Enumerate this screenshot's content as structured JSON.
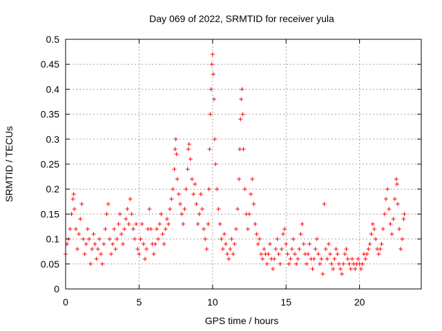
{
  "chart_data": {
    "type": "scatter",
    "title": "Day 069 of 2022, SRMTID for receiver yula",
    "xlabel": "GPS time / hours",
    "ylabel": "SRMTID / TECUs",
    "xlim": [
      0,
      24.2
    ],
    "ylim": [
      0,
      0.5
    ],
    "x_ticks": [
      0,
      5,
      10,
      15,
      20
    ],
    "x_tick_labels": [
      "0",
      "5",
      "10",
      "15",
      "20"
    ],
    "y_ticks": [
      0,
      0.05,
      0.1,
      0.15,
      0.2,
      0.25,
      0.3,
      0.35,
      0.4,
      0.45,
      0.5
    ],
    "y_tick_labels": [
      "0",
      "0.05",
      "0.1",
      "0.15",
      "0.2",
      "0.25",
      "0.3",
      "0.35",
      "0.4",
      "0.45",
      "0.5"
    ],
    "grid": true,
    "marker": "+",
    "color": "#ff0000",
    "series": [
      {
        "name": "SRMTID",
        "points": [
          [
            0.0,
            0.07
          ],
          [
            0.1,
            0.09
          ],
          [
            0.2,
            0.1
          ],
          [
            0.3,
            0.12
          ],
          [
            0.4,
            0.15
          ],
          [
            0.5,
            0.18
          ],
          [
            0.55,
            0.19
          ],
          [
            0.6,
            0.16
          ],
          [
            0.7,
            0.12
          ],
          [
            0.8,
            0.08
          ],
          [
            0.9,
            0.11
          ],
          [
            1.0,
            0.14
          ],
          [
            1.1,
            0.17
          ],
          [
            1.2,
            0.1
          ],
          [
            1.3,
            0.07
          ],
          [
            1.4,
            0.09
          ],
          [
            1.5,
            0.12
          ],
          [
            1.6,
            0.1
          ],
          [
            1.7,
            0.05
          ],
          [
            1.8,
            0.08
          ],
          [
            1.9,
            0.11
          ],
          [
            2.0,
            0.09
          ],
          [
            2.1,
            0.06
          ],
          [
            2.2,
            0.08
          ],
          [
            2.3,
            0.1
          ],
          [
            2.4,
            0.07
          ],
          [
            2.5,
            0.05
          ],
          [
            2.6,
            0.09
          ],
          [
            2.7,
            0.12
          ],
          [
            2.8,
            0.15
          ],
          [
            2.9,
            0.17
          ],
          [
            3.0,
            0.1
          ],
          [
            3.1,
            0.07
          ],
          [
            3.2,
            0.09
          ],
          [
            3.3,
            0.12
          ],
          [
            3.4,
            0.08
          ],
          [
            3.5,
            0.1
          ],
          [
            3.6,
            0.13
          ],
          [
            3.7,
            0.15
          ],
          [
            3.8,
            0.11
          ],
          [
            3.9,
            0.09
          ],
          [
            4.0,
            0.12
          ],
          [
            4.1,
            0.14
          ],
          [
            4.2,
            0.16
          ],
          [
            4.3,
            0.13
          ],
          [
            4.4,
            0.18
          ],
          [
            4.5,
            0.15
          ],
          [
            4.6,
            0.12
          ],
          [
            4.7,
            0.1
          ],
          [
            4.8,
            0.13
          ],
          [
            4.9,
            0.08
          ],
          [
            5.0,
            0.07
          ],
          [
            5.1,
            0.1
          ],
          [
            5.2,
            0.13
          ],
          [
            5.3,
            0.09
          ],
          [
            5.4,
            0.06
          ],
          [
            5.5,
            0.08
          ],
          [
            5.6,
            0.12
          ],
          [
            5.7,
            0.16
          ],
          [
            5.8,
            0.12
          ],
          [
            5.9,
            0.09
          ],
          [
            6.0,
            0.07
          ],
          [
            6.1,
            0.09
          ],
          [
            6.2,
            0.12
          ],
          [
            6.3,
            0.1
          ],
          [
            6.4,
            0.13
          ],
          [
            6.5,
            0.15
          ],
          [
            6.6,
            0.11
          ],
          [
            6.7,
            0.09
          ],
          [
            6.8,
            0.12
          ],
          [
            6.9,
            0.14
          ],
          [
            7.0,
            0.13
          ],
          [
            7.1,
            0.16
          ],
          [
            7.2,
            0.18
          ],
          [
            7.3,
            0.2
          ],
          [
            7.4,
            0.24
          ],
          [
            7.45,
            0.28
          ],
          [
            7.5,
            0.3
          ],
          [
            7.55,
            0.27
          ],
          [
            7.6,
            0.22
          ],
          [
            7.7,
            0.19
          ],
          [
            7.8,
            0.17
          ],
          [
            7.9,
            0.15
          ],
          [
            8.0,
            0.13
          ],
          [
            8.1,
            0.16
          ],
          [
            8.2,
            0.2
          ],
          [
            8.3,
            0.24
          ],
          [
            8.35,
            0.28
          ],
          [
            8.4,
            0.29
          ],
          [
            8.5,
            0.26
          ],
          [
            8.6,
            0.22
          ],
          [
            8.7,
            0.19
          ],
          [
            8.8,
            0.21
          ],
          [
            8.9,
            0.17
          ],
          [
            9.0,
            0.13
          ],
          [
            9.1,
            0.15
          ],
          [
            9.2,
            0.19
          ],
          [
            9.3,
            0.16
          ],
          [
            9.4,
            0.12
          ],
          [
            9.5,
            0.1
          ],
          [
            9.6,
            0.08
          ],
          [
            9.7,
            0.13
          ],
          [
            9.75,
            0.2
          ],
          [
            9.8,
            0.28
          ],
          [
            9.85,
            0.35
          ],
          [
            9.9,
            0.4
          ],
          [
            9.95,
            0.45
          ],
          [
            10.0,
            0.47
          ],
          [
            10.05,
            0.43
          ],
          [
            10.1,
            0.38
          ],
          [
            10.15,
            0.3
          ],
          [
            10.2,
            0.25
          ],
          [
            10.3,
            0.2
          ],
          [
            10.4,
            0.16
          ],
          [
            10.5,
            0.13
          ],
          [
            10.6,
            0.1
          ],
          [
            10.7,
            0.08
          ],
          [
            10.8,
            0.11
          ],
          [
            10.9,
            0.09
          ],
          [
            11.0,
            0.07
          ],
          [
            11.1,
            0.06
          ],
          [
            11.2,
            0.08
          ],
          [
            11.3,
            0.1
          ],
          [
            11.4,
            0.07
          ],
          [
            11.5,
            0.09
          ],
          [
            11.6,
            0.12
          ],
          [
            11.7,
            0.16
          ],
          [
            11.8,
            0.22
          ],
          [
            11.85,
            0.28
          ],
          [
            11.9,
            0.34
          ],
          [
            11.95,
            0.38
          ],
          [
            12.0,
            0.4
          ],
          [
            12.05,
            0.35
          ],
          [
            12.1,
            0.28
          ],
          [
            12.2,
            0.2
          ],
          [
            12.3,
            0.15
          ],
          [
            12.4,
            0.12
          ],
          [
            12.5,
            0.15
          ],
          [
            12.6,
            0.19
          ],
          [
            12.7,
            0.22
          ],
          [
            12.8,
            0.17
          ],
          [
            12.9,
            0.13
          ],
          [
            13.0,
            0.11
          ],
          [
            13.1,
            0.09
          ],
          [
            13.2,
            0.1
          ],
          [
            13.3,
            0.07
          ],
          [
            13.4,
            0.06
          ],
          [
            13.5,
            0.08
          ],
          [
            13.6,
            0.07
          ],
          [
            13.7,
            0.05
          ],
          [
            13.8,
            0.07
          ],
          [
            13.9,
            0.09
          ],
          [
            14.0,
            0.06
          ],
          [
            14.1,
            0.04
          ],
          [
            14.2,
            0.06
          ],
          [
            14.3,
            0.08
          ],
          [
            14.4,
            0.1
          ],
          [
            14.5,
            0.07
          ],
          [
            14.6,
            0.05
          ],
          [
            14.7,
            0.08
          ],
          [
            14.8,
            0.11
          ],
          [
            14.9,
            0.12
          ],
          [
            15.0,
            0.09
          ],
          [
            15.1,
            0.07
          ],
          [
            15.2,
            0.05
          ],
          [
            15.3,
            0.06
          ],
          [
            15.4,
            0.08
          ],
          [
            15.5,
            0.1
          ],
          [
            15.6,
            0.07
          ],
          [
            15.7,
            0.05
          ],
          [
            15.8,
            0.06
          ],
          [
            15.9,
            0.08
          ],
          [
            16.0,
            0.11
          ],
          [
            16.1,
            0.13
          ],
          [
            16.2,
            0.09
          ],
          [
            16.3,
            0.07
          ],
          [
            16.4,
            0.05
          ],
          [
            16.5,
            0.07
          ],
          [
            16.6,
            0.09
          ],
          [
            16.7,
            0.06
          ],
          [
            16.8,
            0.04
          ],
          [
            16.9,
            0.06
          ],
          [
            17.0,
            0.08
          ],
          [
            17.1,
            0.1
          ],
          [
            17.2,
            0.07
          ],
          [
            17.3,
            0.05
          ],
          [
            17.4,
            0.06
          ],
          [
            17.5,
            0.03
          ],
          [
            17.6,
            0.17
          ],
          [
            17.7,
            0.08
          ],
          [
            17.8,
            0.06
          ],
          [
            17.9,
            0.09
          ],
          [
            18.0,
            0.07
          ],
          [
            18.1,
            0.05
          ],
          [
            18.2,
            0.04
          ],
          [
            18.3,
            0.06
          ],
          [
            18.4,
            0.08
          ],
          [
            18.5,
            0.07
          ],
          [
            18.6,
            0.05
          ],
          [
            18.7,
            0.04
          ],
          [
            18.8,
            0.03
          ],
          [
            18.9,
            0.05
          ],
          [
            19.0,
            0.07
          ],
          [
            19.1,
            0.08
          ],
          [
            19.2,
            0.06
          ],
          [
            19.3,
            0.05
          ],
          [
            19.4,
            0.04
          ],
          [
            19.5,
            0.06
          ],
          [
            19.6,
            0.05
          ],
          [
            19.7,
            0.04
          ],
          [
            19.8,
            0.05
          ],
          [
            19.9,
            0.06
          ],
          [
            20.0,
            0.05
          ],
          [
            20.1,
            0.04
          ],
          [
            20.2,
            0.05
          ],
          [
            20.3,
            0.07
          ],
          [
            20.4,
            0.06
          ],
          [
            20.5,
            0.07
          ],
          [
            20.6,
            0.08
          ],
          [
            20.7,
            0.09
          ],
          [
            20.8,
            0.11
          ],
          [
            20.9,
            0.13
          ],
          [
            21.0,
            0.12
          ],
          [
            21.1,
            0.1
          ],
          [
            21.2,
            0.08
          ],
          [
            21.3,
            0.07
          ],
          [
            21.4,
            0.08
          ],
          [
            21.5,
            0.09
          ],
          [
            21.6,
            0.12
          ],
          [
            21.7,
            0.15
          ],
          [
            21.8,
            0.18
          ],
          [
            21.9,
            0.2
          ],
          [
            22.0,
            0.16
          ],
          [
            22.1,
            0.13
          ],
          [
            22.2,
            0.11
          ],
          [
            22.3,
            0.14
          ],
          [
            22.4,
            0.18
          ],
          [
            22.5,
            0.22
          ],
          [
            22.55,
            0.21
          ],
          [
            22.6,
            0.17
          ],
          [
            22.7,
            0.12
          ],
          [
            22.8,
            0.08
          ],
          [
            22.9,
            0.1
          ],
          [
            23.0,
            0.14
          ],
          [
            23.05,
            0.15
          ]
        ]
      }
    ]
  }
}
